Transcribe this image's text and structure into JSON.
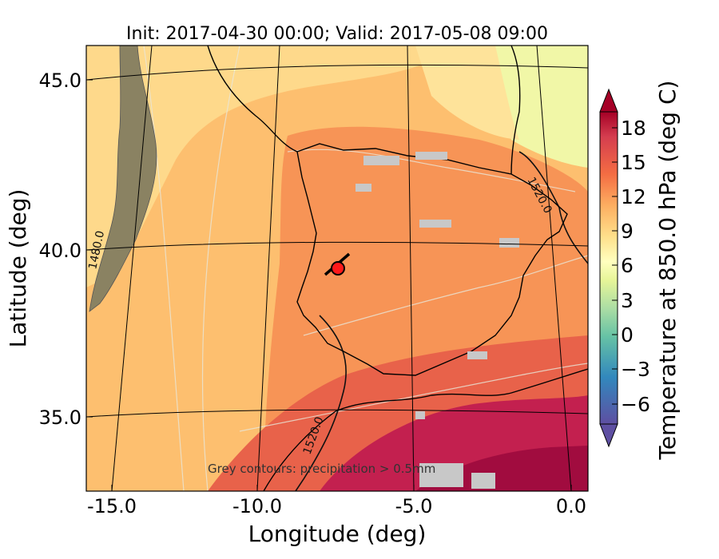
{
  "figure": {
    "title": "Init: 2017-04-30 00:00; Valid: 2017-05-08 09:00",
    "xlabel": "Longitude (deg)",
    "ylabel": "Latitude (deg)",
    "x_ticks": [
      "-15.0",
      "-10.0",
      "-5.0",
      "0.0"
    ],
    "y_ticks": [
      "45.0",
      "40.0",
      "35.0"
    ],
    "colorbar_label": "Temperature at 850.0 hPa (deg C)",
    "colorbar_ticks": [
      "18",
      "15",
      "12",
      "9",
      "6",
      "3",
      "0",
      "−3",
      "−6"
    ],
    "contour_labels": [
      "1520.0",
      "1480.0",
      "1520.0"
    ],
    "note": "Grey contours: precipitation > 0.5mm"
  },
  "map_data": {
    "type": "filled-contour-map",
    "extent": {
      "lon": [
        -15.8,
        0.0
      ],
      "lat": [
        32.8,
        46.0
      ]
    },
    "field": "temperature_850hPa",
    "units": "deg C",
    "colorbar_range": [
      -8,
      20
    ],
    "colorbar_levels": [
      -8,
      -7,
      -6,
      -5,
      -4,
      -3,
      -2,
      -1,
      0,
      1,
      2,
      3,
      4,
      5,
      6,
      7,
      8,
      9,
      10,
      11,
      12,
      13,
      14,
      15,
      16,
      17,
      18,
      19,
      20
    ],
    "colorbar_extend": "both",
    "contour_field": "geopotential height",
    "contour_values": [
      1480.0,
      1520.0
    ],
    "marker": {
      "lon": -7.6,
      "lat": 39.3,
      "color": "#ff1a1a"
    },
    "colors": {
      "warm": "#a50026",
      "mid": "#fdae61",
      "neutral": "#ffffbf",
      "cool": "#abdda4",
      "cold": "#5e4fa2",
      "precip": "#c8c8c8"
    }
  }
}
